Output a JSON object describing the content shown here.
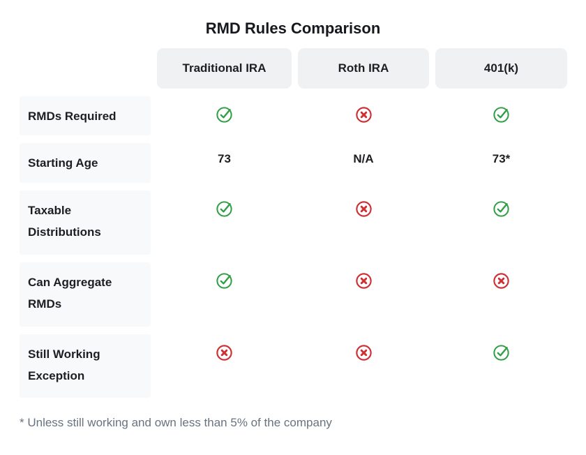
{
  "title": "RMD Rules Comparison",
  "columns": [
    "Traditional IRA",
    "Roth IRA",
    "401(k)"
  ],
  "rows": [
    {
      "label": "RMDs Required",
      "values": [
        "check",
        "cross",
        "check"
      ]
    },
    {
      "label": "Starting Age",
      "values": [
        "73",
        "N/A",
        "73*"
      ]
    },
    {
      "label": "Taxable Distributions",
      "values": [
        "check",
        "cross",
        "check"
      ]
    },
    {
      "label": "Can Aggregate RMDs",
      "values": [
        "check",
        "cross",
        "cross"
      ]
    },
    {
      "label": "Still Working Exception",
      "values": [
        "cross",
        "cross",
        "check"
      ]
    }
  ],
  "footnote": "* Unless still working and own less than 5% of the company",
  "icons": {
    "check": "check-circle-icon",
    "cross": "x-circle-icon"
  },
  "colors": {
    "check_green": "#2f9e44",
    "cross_red": "#cf2e33",
    "header_bg": "#f0f1f3",
    "label_bg": "#f8f9fa",
    "text_dark": "#1c1e22",
    "footnote_gray": "#68737f"
  }
}
